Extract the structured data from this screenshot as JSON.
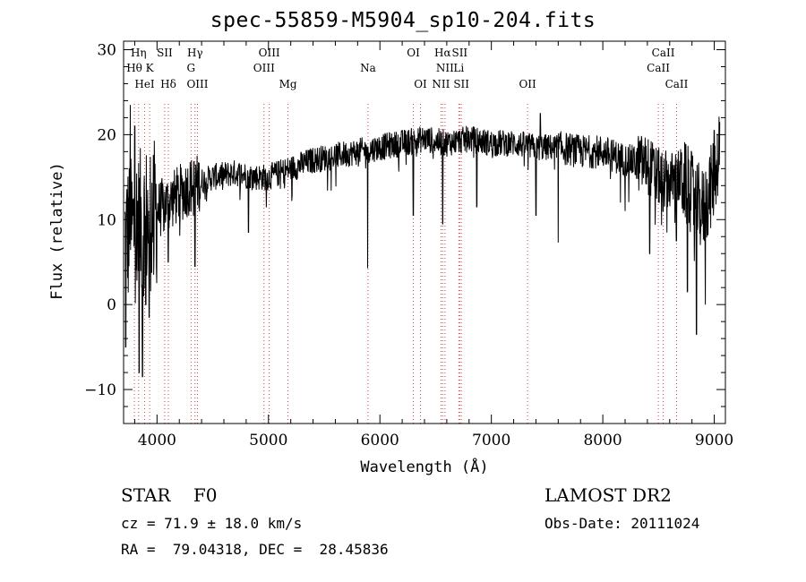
{
  "chart_data": {
    "type": "line",
    "title": "spec-55859-M5904_sp10-204.fits",
    "xlabel": "Wavelength (Å)",
    "ylabel": "Flux (relative)",
    "xlim": [
      3700,
      9100
    ],
    "ylim": [
      -14,
      31
    ],
    "xticks": [
      4000,
      5000,
      6000,
      7000,
      8000,
      9000
    ],
    "yticks": [
      -10,
      0,
      10,
      20,
      30
    ],
    "ytick_labels": [
      "−10",
      "0",
      "10",
      "20",
      "30"
    ],
    "continuum": {
      "x": [
        3700,
        3800,
        3900,
        4000,
        4100,
        4200,
        4300,
        4400,
        4500,
        4700,
        4900,
        5000,
        5200,
        5400,
        5600,
        5800,
        6000,
        6200,
        6400,
        6600,
        6800,
        7000,
        7200,
        7400,
        7600,
        7800,
        8000,
        8200,
        8400,
        8500,
        8600,
        8700,
        8800,
        8900,
        9000,
        9050
      ],
      "y": [
        8,
        9,
        10,
        11,
        12,
        13,
        14,
        14.5,
        15,
        15.5,
        15,
        15,
        16,
        17,
        17.5,
        18,
        18.5,
        19,
        19.5,
        19,
        19.5,
        19,
        19,
        18.5,
        18.5,
        18,
        18,
        17,
        16.5,
        15,
        14.5,
        15,
        13,
        11,
        15,
        19
      ]
    },
    "features": [
      {
        "x": 3720,
        "y": -5
      },
      {
        "x": 3760,
        "y": 23.5
      },
      {
        "x": 3800,
        "y": 21
      },
      {
        "x": 3840,
        "y": -8
      },
      {
        "x": 3870,
        "y": -8.5
      },
      {
        "x": 3900,
        "y": 0
      },
      {
        "x": 3930,
        "y": -1.5
      },
      {
        "x": 3970,
        "y": 3.5
      },
      {
        "x": 4100,
        "y": 5
      },
      {
        "x": 4340,
        "y": 4.5
      },
      {
        "x": 4820,
        "y": 8.5
      },
      {
        "x": 5890,
        "y": 4.3
      },
      {
        "x": 6300,
        "y": 10.5
      },
      {
        "x": 6563,
        "y": 9.5
      },
      {
        "x": 6870,
        "y": 11.5
      },
      {
        "x": 7400,
        "y": 10.5
      },
      {
        "x": 7440,
        "y": 22.5
      },
      {
        "x": 7600,
        "y": 7.3
      },
      {
        "x": 8200,
        "y": 11
      },
      {
        "x": 8420,
        "y": 6
      },
      {
        "x": 8540,
        "y": 11
      },
      {
        "x": 8660,
        "y": 7.5
      },
      {
        "x": 8760,
        "y": 1.5
      },
      {
        "x": 8840,
        "y": -3.5
      },
      {
        "x": 8920,
        "y": 0
      },
      {
        "x": 9000,
        "y": 20.5
      }
    ],
    "lines": [
      {
        "label": "Hη",
        "x": 3835,
        "row": 0
      },
      {
        "label": "Hθ",
        "x": 3797,
        "row": 1
      },
      {
        "label": "K",
        "x": 3934,
        "row": 1
      },
      {
        "label": "HeI",
        "x": 3889,
        "row": 2
      },
      {
        "label": "SII",
        "x": 4069,
        "row": 0
      },
      {
        "label": "Hδ",
        "x": 4102,
        "row": 2
      },
      {
        "label": "Hγ",
        "x": 4341,
        "row": 0
      },
      {
        "label": "G",
        "x": 4305,
        "row": 1
      },
      {
        "label": "OIII",
        "x": 4363,
        "row": 2
      },
      {
        "label": "OIII",
        "x": 5007,
        "row": 0
      },
      {
        "label": "OIII",
        "x": 4960,
        "row": 1
      },
      {
        "label": "Mg",
        "x": 5175,
        "row": 2
      },
      {
        "label": "Na",
        "x": 5893,
        "row": 1
      },
      {
        "label": "OI",
        "x": 6300,
        "row": 0
      },
      {
        "label": "OI",
        "x": 6364,
        "row": 2
      },
      {
        "label": "Hα",
        "x": 6563,
        "row": 0
      },
      {
        "label": "SII",
        "x": 6716,
        "row": 0
      },
      {
        "label": "NII",
        "x": 6584,
        "row": 1
      },
      {
        "label": "Li",
        "x": 6708,
        "row": 1
      },
      {
        "label": "NII",
        "x": 6548,
        "row": 2
      },
      {
        "label": "SII",
        "x": 6731,
        "row": 2
      },
      {
        "label": "OII",
        "x": 7325,
        "row": 2
      },
      {
        "label": "CaII",
        "x": 8542,
        "row": 0
      },
      {
        "label": "CaII",
        "x": 8498,
        "row": 1
      },
      {
        "label": "CaII",
        "x": 8662,
        "row": 2
      }
    ]
  },
  "info": {
    "object": "STAR    F0",
    "survey": "LAMOST DR2",
    "cz": "cz = 71.9 ± 18.0 km/s",
    "obs_date": "Obs-Date: 20111024",
    "coords": "RA =  79.04318, DEC =  28.45836"
  }
}
